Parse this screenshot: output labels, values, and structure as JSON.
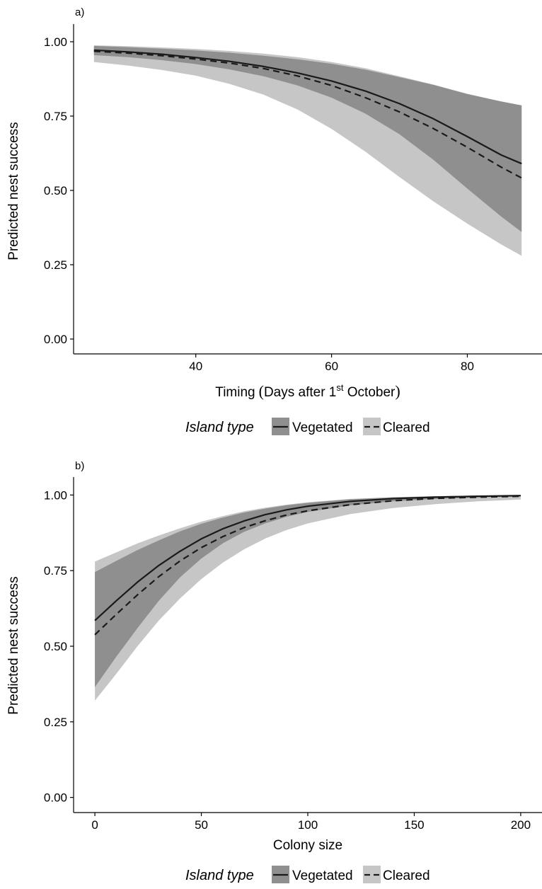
{
  "chart_data": [
    {
      "type": "line",
      "panel_label": "a)",
      "xlabel": "Timing",
      "xlabel_paren": {
        "open": "(",
        "main": "Days after 1",
        "sup": "st",
        "rest": " October",
        "close": ")"
      },
      "ylabel": "Predicted nest success",
      "xlim": [
        22,
        91
      ],
      "ylim": [
        -0.05,
        1.05
      ],
      "xticks": [
        40,
        60,
        80
      ],
      "yticks": [
        0.0,
        0.25,
        0.5,
        0.75,
        1.0
      ],
      "xtick_labels": [
        "40",
        "60",
        "80"
      ],
      "ytick_labels": [
        "0.00",
        "0.25",
        "0.50",
        "0.75",
        "1.00"
      ],
      "legend": {
        "title": "Island type",
        "position": "bottom",
        "items": [
          "Vegetated",
          "Cleared"
        ]
      },
      "series": [
        {
          "name": "Vegetated",
          "line_style": "solid",
          "x": [
            25,
            30,
            35,
            40,
            45,
            50,
            55,
            60,
            65,
            70,
            75,
            80,
            85,
            88
          ],
          "y": [
            0.972,
            0.966,
            0.958,
            0.947,
            0.934,
            0.917,
            0.895,
            0.868,
            0.834,
            0.792,
            0.741,
            0.681,
            0.619,
            0.59
          ],
          "lower": [
            0.955,
            0.948,
            0.938,
            0.925,
            0.907,
            0.884,
            0.853,
            0.812,
            0.758,
            0.689,
            0.603,
            0.506,
            0.412,
            0.36
          ],
          "upper": [
            0.986,
            0.982,
            0.977,
            0.971,
            0.963,
            0.953,
            0.941,
            0.926,
            0.906,
            0.881,
            0.855,
            0.824,
            0.799,
            0.786
          ]
        },
        {
          "name": "Cleared",
          "line_style": "dashed",
          "x": [
            25,
            30,
            35,
            40,
            45,
            50,
            55,
            60,
            65,
            70,
            75,
            80,
            85,
            88
          ],
          "y": [
            0.968,
            0.962,
            0.953,
            0.942,
            0.928,
            0.91,
            0.885,
            0.853,
            0.812,
            0.764,
            0.708,
            0.645,
            0.578,
            0.542
          ],
          "lower": [
            0.932,
            0.92,
            0.905,
            0.886,
            0.858,
            0.822,
            0.772,
            0.707,
            0.63,
            0.545,
            0.463,
            0.388,
            0.318,
            0.28
          ],
          "upper": [
            0.988,
            0.985,
            0.981,
            0.976,
            0.969,
            0.96,
            0.948,
            0.932,
            0.911,
            0.884,
            0.856,
            0.825,
            0.799,
            0.786
          ]
        }
      ]
    },
    {
      "type": "line",
      "panel_label": "b)",
      "xlabel": "Colony size",
      "ylabel": "Predicted nest success",
      "xlim": [
        -10,
        210
      ],
      "ylim": [
        -0.05,
        1.05
      ],
      "xticks": [
        0,
        50,
        100,
        150,
        200
      ],
      "yticks": [
        0.0,
        0.25,
        0.5,
        0.75,
        1.0
      ],
      "xtick_labels": [
        "0",
        "50",
        "100",
        "150",
        "200"
      ],
      "ytick_labels": [
        "0.00",
        "0.25",
        "0.50",
        "0.75",
        "1.00"
      ],
      "legend": {
        "title": "Island type",
        "position": "bottom",
        "items": [
          "Vegetated",
          "Cleared"
        ]
      },
      "series": [
        {
          "name": "Vegetated",
          "line_style": "solid",
          "x": [
            0,
            10,
            20,
            30,
            40,
            50,
            60,
            70,
            80,
            90,
            100,
            120,
            140,
            160,
            180,
            200
          ],
          "y": [
            0.585,
            0.65,
            0.712,
            0.767,
            0.814,
            0.855,
            0.888,
            0.914,
            0.935,
            0.951,
            0.963,
            0.979,
            0.988,
            0.993,
            0.996,
            0.998
          ],
          "lower": [
            0.365,
            0.465,
            0.56,
            0.65,
            0.728,
            0.79,
            0.84,
            0.878,
            0.906,
            0.928,
            0.944,
            0.966,
            0.979,
            0.987,
            0.992,
            0.995
          ],
          "upper": [
            0.745,
            0.782,
            0.818,
            0.85,
            0.88,
            0.905,
            0.925,
            0.942,
            0.955,
            0.966,
            0.974,
            0.986,
            0.992,
            0.996,
            0.998,
            0.999
          ]
        },
        {
          "name": "Cleared",
          "line_style": "dashed",
          "x": [
            0,
            10,
            20,
            30,
            40,
            50,
            60,
            70,
            80,
            90,
            100,
            120,
            140,
            160,
            180,
            200
          ],
          "y": [
            0.538,
            0.605,
            0.67,
            0.73,
            0.782,
            0.826,
            0.862,
            0.892,
            0.915,
            0.934,
            0.948,
            0.968,
            0.981,
            0.989,
            0.993,
            0.996
          ],
          "lower": [
            0.32,
            0.408,
            0.5,
            0.585,
            0.658,
            0.722,
            0.776,
            0.82,
            0.856,
            0.884,
            0.906,
            0.937,
            0.957,
            0.97,
            0.979,
            0.985
          ],
          "upper": [
            0.78,
            0.81,
            0.84,
            0.866,
            0.89,
            0.912,
            0.93,
            0.946,
            0.958,
            0.968,
            0.976,
            0.987,
            0.993,
            0.996,
            0.998,
            0.999
          ]
        }
      ]
    }
  ],
  "colors": {
    "vegetated_band": "#8f8f8f",
    "cleared_band": "#c6c6c6",
    "line": "#1a1a1a",
    "axis": "#000000"
  }
}
